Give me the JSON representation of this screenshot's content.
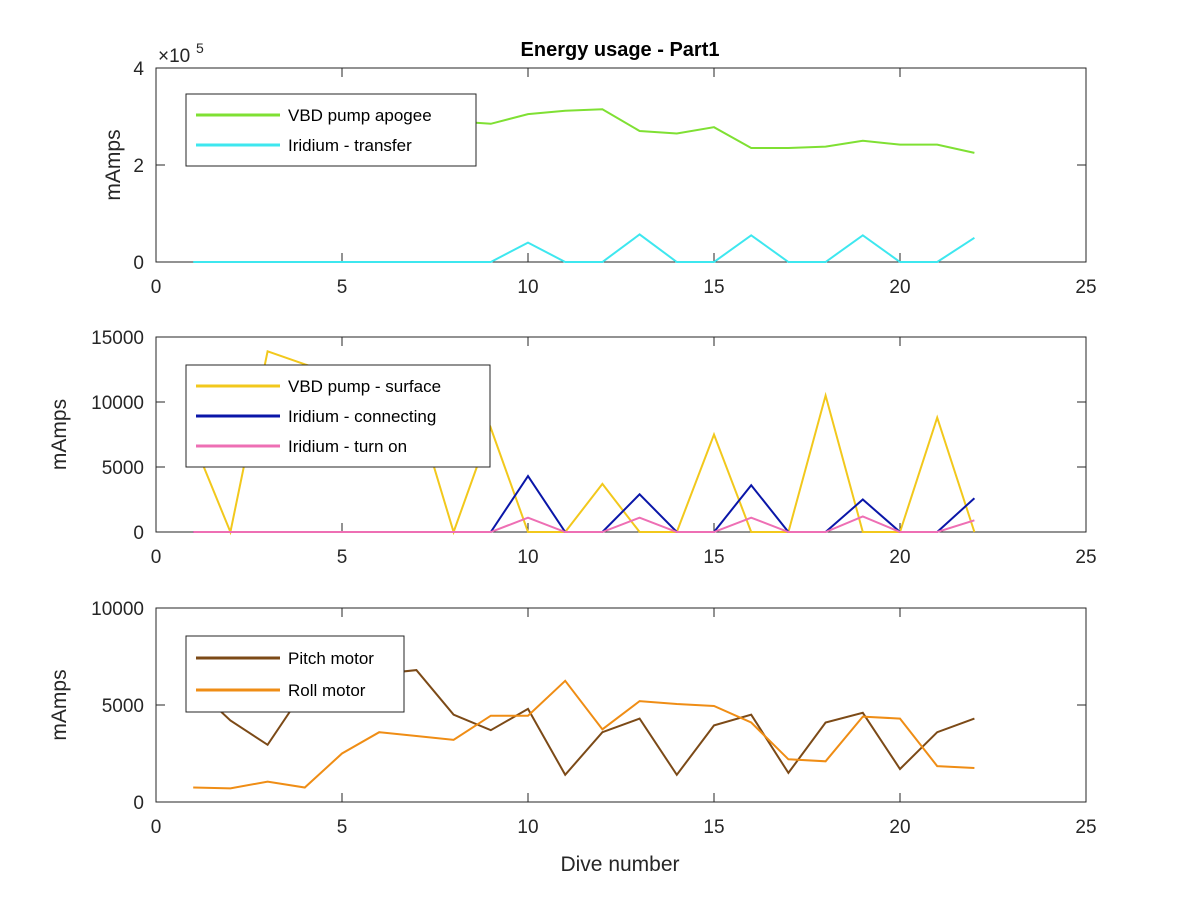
{
  "figure": {
    "title": "Energy usage - Part1",
    "xlabel": "Dive number"
  },
  "chart_data": [
    {
      "type": "line",
      "title": "Energy usage - Part1",
      "xlabel": "",
      "ylabel": "mAmps",
      "exponent_label": "×10",
      "exponent_power": "5",
      "xlim": [
        0,
        25
      ],
      "ylim": [
        0,
        4
      ],
      "xticks": [
        "0",
        "5",
        "10",
        "15",
        "20",
        "25"
      ],
      "yticks": [
        "0",
        "2",
        "4"
      ],
      "x": [
        1,
        2,
        3,
        4,
        5,
        6,
        7,
        8,
        9,
        10,
        11,
        12,
        13,
        14,
        15,
        16,
        17,
        18,
        19,
        20,
        21,
        22
      ],
      "grid": false,
      "legend_position": "top-left",
      "series": [
        {
          "name": "VBD pump apogee",
          "color": "#7fe033",
          "values": [
            2.6,
            2.65,
            2.7,
            2.75,
            2.8,
            2.85,
            2.85,
            2.9,
            2.85,
            3.05,
            3.12,
            3.15,
            2.7,
            2.65,
            2.78,
            2.35,
            2.35,
            2.38,
            2.5,
            2.42,
            2.42,
            2.25
          ]
        },
        {
          "name": "Iridium - transfer",
          "color": "#3ee7ef",
          "values": [
            0,
            0,
            0,
            0,
            0,
            0,
            0,
            0,
            0,
            0.4,
            0,
            0,
            0.57,
            0,
            0,
            0.55,
            0,
            0,
            0.55,
            0,
            0,
            0.5
          ]
        }
      ]
    },
    {
      "type": "line",
      "ylabel": "mAmps",
      "xlim": [
        0,
        25
      ],
      "ylim": [
        0,
        15000
      ],
      "xticks": [
        "0",
        "5",
        "10",
        "15",
        "20",
        "25"
      ],
      "yticks": [
        "0",
        "5000",
        "10000",
        "15000"
      ],
      "x": [
        1,
        2,
        3,
        4,
        5,
        6,
        7,
        8,
        9,
        10,
        11,
        12,
        13,
        14,
        15,
        16,
        17,
        18,
        19,
        20,
        21,
        22
      ],
      "grid": false,
      "legend_position": "top-left",
      "series": [
        {
          "name": "VBD pump - surface",
          "color": "#f2c81c",
          "values": [
            7000,
            0,
            13900,
            12900,
            12000,
            11000,
            9500,
            0,
            8000,
            0,
            0,
            3700,
            0,
            0,
            7500,
            0,
            0,
            10500,
            0,
            0,
            8800,
            0
          ]
        },
        {
          "name": "Iridium - connecting",
          "color": "#0a16a8",
          "values": [
            0,
            0,
            0,
            0,
            0,
            0,
            0,
            0,
            0,
            4300,
            0,
            0,
            2900,
            0,
            0,
            3600,
            0,
            0,
            2500,
            0,
            0,
            2600
          ]
        },
        {
          "name": "Iridium - turn on",
          "color": "#ee6fb4",
          "values": [
            0,
            0,
            0,
            0,
            0,
            0,
            0,
            0,
            0,
            1100,
            0,
            0,
            1100,
            0,
            0,
            1100,
            0,
            0,
            1200,
            0,
            0,
            900
          ]
        }
      ]
    },
    {
      "type": "line",
      "ylabel": "mAmps",
      "xlabel": "Dive number",
      "xlim": [
        0,
        25
      ],
      "ylim": [
        0,
        10000
      ],
      "xticks": [
        "0",
        "5",
        "10",
        "15",
        "20",
        "25"
      ],
      "yticks": [
        "0",
        "5000",
        "10000"
      ],
      "x": [
        1,
        2,
        3,
        4,
        5,
        6,
        7,
        8,
        9,
        10,
        11,
        12,
        13,
        14,
        15,
        16,
        17,
        18,
        19,
        20,
        21,
        22
      ],
      "grid": false,
      "legend_position": "top-left",
      "series": [
        {
          "name": "Pitch motor",
          "color": "#7c4a17",
          "values": [
            6000,
            4200,
            2950,
            5800,
            6300,
            6600,
            6800,
            4500,
            3700,
            4800,
            1400,
            3600,
            4300,
            1400,
            3950,
            4500,
            1500,
            4100,
            4600,
            1700,
            3600,
            4300
          ]
        },
        {
          "name": "Roll motor",
          "color": "#ef8d15",
          "values": [
            750,
            700,
            1050,
            750,
            2500,
            3600,
            3400,
            3200,
            4450,
            4450,
            6250,
            3750,
            5200,
            5050,
            4950,
            4100,
            2200,
            2100,
            4400,
            4300,
            1850,
            1750
          ]
        }
      ]
    }
  ]
}
